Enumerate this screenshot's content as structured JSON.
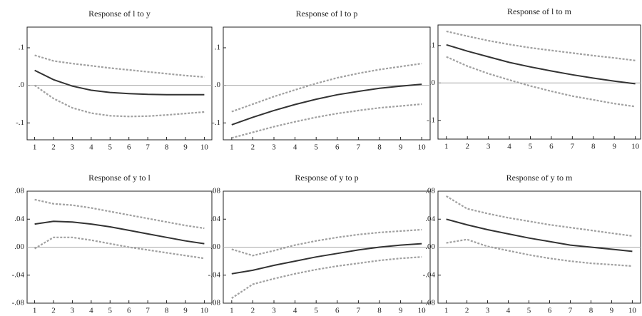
{
  "chart_data": [
    {
      "type": "line",
      "title": "Response of l to y",
      "x": [
        1,
        2,
        3,
        4,
        5,
        6,
        7,
        8,
        9,
        10
      ],
      "xlim": [
        0.6,
        10.4
      ],
      "xticks": [
        1,
        2,
        3,
        4,
        5,
        6,
        7,
        8,
        9,
        10
      ],
      "ylim": [
        -0.145,
        0.155
      ],
      "yticks": [
        {
          "value": 0.1,
          "label": ".1"
        },
        {
          "value": 0,
          "label": ".0"
        },
        {
          "value": -0.1,
          "label": "-.1"
        }
      ],
      "hline": 0,
      "series": [
        {
          "color": "#333333",
          "dashed": false,
          "values": [
            0.04,
            0.015,
            -0.002,
            -0.013,
            -0.019,
            -0.022,
            -0.024,
            -0.025,
            -0.025,
            -0.025
          ]
        },
        {
          "color": "#a0a0a0",
          "dashed": true,
          "values": [
            0.08,
            0.065,
            0.058,
            0.052,
            0.046,
            0.041,
            0.036,
            0.031,
            0.026,
            0.022
          ]
        },
        {
          "color": "#a0a0a0",
          "dashed": true,
          "values": [
            0,
            -0.035,
            -0.06,
            -0.074,
            -0.081,
            -0.083,
            -0.082,
            -0.079,
            -0.075,
            -0.071
          ]
        }
      ]
    },
    {
      "type": "line",
      "title": "Response of l to p",
      "x": [
        1,
        2,
        3,
        4,
        5,
        6,
        7,
        8,
        9,
        10
      ],
      "xlim": [
        0.6,
        10.4
      ],
      "xticks": [
        1,
        2,
        3,
        4,
        5,
        6,
        7,
        8,
        9,
        10
      ],
      "ylim": [
        -0.145,
        0.155
      ],
      "yticks": [
        {
          "value": 0.1,
          "label": ".1"
        },
        {
          "value": 0,
          "label": ".0"
        },
        {
          "value": -0.1,
          "label": "-.1"
        }
      ],
      "hline": 0,
      "series": [
        {
          "color": "#333333",
          "dashed": false,
          "values": [
            -0.105,
            -0.085,
            -0.067,
            -0.051,
            -0.037,
            -0.025,
            -0.016,
            -0.008,
            -0.002,
            0.003
          ]
        },
        {
          "color": "#a0a0a0",
          "dashed": true,
          "values": [
            -0.07,
            -0.05,
            -0.03,
            -0.012,
            0.005,
            0.02,
            0.032,
            0.042,
            0.05,
            0.058
          ]
        },
        {
          "color": "#a0a0a0",
          "dashed": true,
          "values": [
            -0.14,
            -0.125,
            -0.11,
            -0.097,
            -0.085,
            -0.075,
            -0.067,
            -0.06,
            -0.055,
            -0.05
          ]
        }
      ]
    },
    {
      "type": "line",
      "title": "Response of l to m",
      "x": [
        1,
        2,
        3,
        4,
        5,
        6,
        7,
        8,
        9,
        10
      ],
      "xlim": [
        0.6,
        10.25
      ],
      "xticks": [
        1,
        2,
        3,
        4,
        5,
        6,
        7,
        8,
        9,
        10
      ],
      "ylim": [
        -0.15,
        0.155
      ],
      "yticks": [
        {
          "value": 0.1,
          "label": ".1"
        },
        {
          "value": 0,
          "label": ".0"
        },
        {
          "value": -0.1,
          "label": "-.1"
        }
      ],
      "hline": 0,
      "series": [
        {
          "color": "#333333",
          "dashed": false,
          "values": [
            0.102,
            0.085,
            0.07,
            0.055,
            0.043,
            0.032,
            0.022,
            0.013,
            0.005,
            -0.002
          ]
        },
        {
          "color": "#a0a0a0",
          "dashed": true,
          "values": [
            0.138,
            0.125,
            0.113,
            0.103,
            0.094,
            0.087,
            0.08,
            0.073,
            0.067,
            0.06
          ]
        },
        {
          "color": "#a0a0a0",
          "dashed": true,
          "values": [
            0.07,
            0.045,
            0.025,
            0.008,
            -0.008,
            -0.022,
            -0.035,
            -0.045,
            -0.055,
            -0.063
          ]
        }
      ]
    },
    {
      "type": "line",
      "title": "Response of y to l",
      "x": [
        1,
        2,
        3,
        4,
        5,
        6,
        7,
        8,
        9,
        10
      ],
      "xlim": [
        0.6,
        10.4
      ],
      "xticks": [
        1,
        2,
        3,
        4,
        5,
        6,
        7,
        8,
        9,
        10
      ],
      "ylim": [
        -0.08,
        0.08
      ],
      "yticks": [
        {
          "value": 0.08,
          "label": ".08"
        },
        {
          "value": 0.04,
          "label": ".04"
        },
        {
          "value": 0,
          "label": ".00"
        },
        {
          "value": -0.04,
          "label": "-.04"
        },
        {
          "value": -0.08,
          "label": "-.08"
        }
      ],
      "hline": 0,
      "series": [
        {
          "color": "#333333",
          "dashed": false,
          "values": [
            0.033,
            0.037,
            0.036,
            0.033,
            0.029,
            0.024,
            0.019,
            0.014,
            0.009,
            0.005
          ]
        },
        {
          "color": "#a0a0a0",
          "dashed": true,
          "values": [
            0.068,
            0.062,
            0.06,
            0.056,
            0.051,
            0.046,
            0.041,
            0.036,
            0.031,
            0.027
          ]
        },
        {
          "color": "#a0a0a0",
          "dashed": true,
          "values": [
            -0.002,
            0.014,
            0.014,
            0.01,
            0.005,
            0,
            -0.004,
            -0.008,
            -0.012,
            -0.016
          ]
        }
      ]
    },
    {
      "type": "line",
      "title": "Response of y to p",
      "x": [
        1,
        2,
        3,
        4,
        5,
        6,
        7,
        8,
        9,
        10
      ],
      "xlim": [
        0.6,
        10.4
      ],
      "xticks": [
        1,
        2,
        3,
        4,
        5,
        6,
        7,
        8,
        9,
        10
      ],
      "ylim": [
        -0.08,
        0.08
      ],
      "yticks": [
        {
          "value": 0.08,
          "label": ".08"
        },
        {
          "value": 0.04,
          "label": ".04"
        },
        {
          "value": 0,
          "label": ".00"
        },
        {
          "value": -0.04,
          "label": "-.04"
        },
        {
          "value": -0.08,
          "label": "-.08"
        }
      ],
      "hline": 0,
      "series": [
        {
          "color": "#333333",
          "dashed": false,
          "values": [
            -0.038,
            -0.033,
            -0.026,
            -0.02,
            -0.014,
            -0.009,
            -0.004,
            0,
            0.003,
            0.005
          ]
        },
        {
          "color": "#a0a0a0",
          "dashed": true,
          "values": [
            -0.003,
            -0.012,
            -0.005,
            0.003,
            0.009,
            0.014,
            0.018,
            0.021,
            0.023,
            0.025
          ]
        },
        {
          "color": "#a0a0a0",
          "dashed": true,
          "values": [
            -0.073,
            -0.053,
            -0.045,
            -0.038,
            -0.032,
            -0.027,
            -0.023,
            -0.019,
            -0.016,
            -0.014
          ]
        }
      ]
    },
    {
      "type": "line",
      "title": "Response of y to m",
      "x": [
        1,
        2,
        3,
        4,
        5,
        6,
        7,
        8,
        9,
        10
      ],
      "xlim": [
        0.6,
        10.4
      ],
      "xticks": [
        1,
        2,
        3,
        4,
        5,
        6,
        7,
        8,
        9,
        10
      ],
      "ylim": [
        -0.08,
        0.08
      ],
      "yticks": [
        {
          "value": 0.08,
          "label": ".08"
        },
        {
          "value": 0.04,
          "label": ".04"
        },
        {
          "value": 0,
          "label": ".00"
        },
        {
          "value": -0.04,
          "label": "-.04"
        },
        {
          "value": -0.08,
          "label": "-.08"
        }
      ],
      "hline": 0,
      "series": [
        {
          "color": "#333333",
          "dashed": false,
          "values": [
            0.04,
            0.032,
            0.025,
            0.019,
            0.013,
            0.008,
            0.003,
            0,
            -0.003,
            -0.006
          ]
        },
        {
          "color": "#a0a0a0",
          "dashed": true,
          "values": [
            0.073,
            0.055,
            0.048,
            0.042,
            0.037,
            0.032,
            0.028,
            0.024,
            0.02,
            0.016
          ]
        },
        {
          "color": "#a0a0a0",
          "dashed": true,
          "values": [
            0.006,
            0.011,
            0.001,
            -0.005,
            -0.011,
            -0.016,
            -0.02,
            -0.023,
            -0.025,
            -0.027
          ]
        }
      ]
    }
  ]
}
